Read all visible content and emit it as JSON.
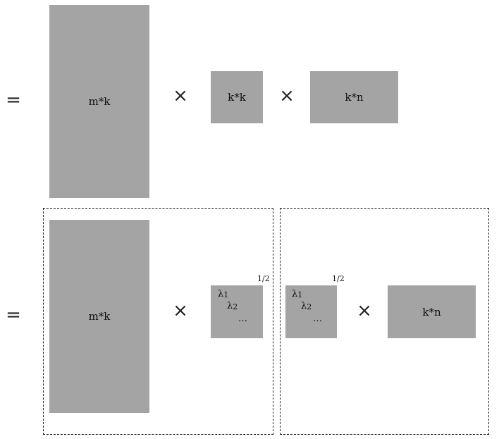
{
  "row1": {
    "equals": "=",
    "times_1": "×",
    "times_2": "×",
    "left_matrix": "m*k",
    "mid_matrix": "k*k",
    "right_matrix": "k*n"
  },
  "row2": {
    "equals": "=",
    "times_1": "×",
    "times_2": "×",
    "left_matrix": "m*k",
    "right_matrix": "k*n",
    "diag_left": {
      "l1": "λ",
      "s1": "1",
      "l2": "λ",
      "s2": "2",
      "dots": "…",
      "exponent": "1/2"
    },
    "diag_right": {
      "l1": "λ",
      "s1": "1",
      "l2": "λ",
      "s2": "2",
      "dots": "…",
      "exponent": "1/2"
    }
  },
  "colors": {
    "block": "#a4a4a4",
    "border": "#222222"
  }
}
